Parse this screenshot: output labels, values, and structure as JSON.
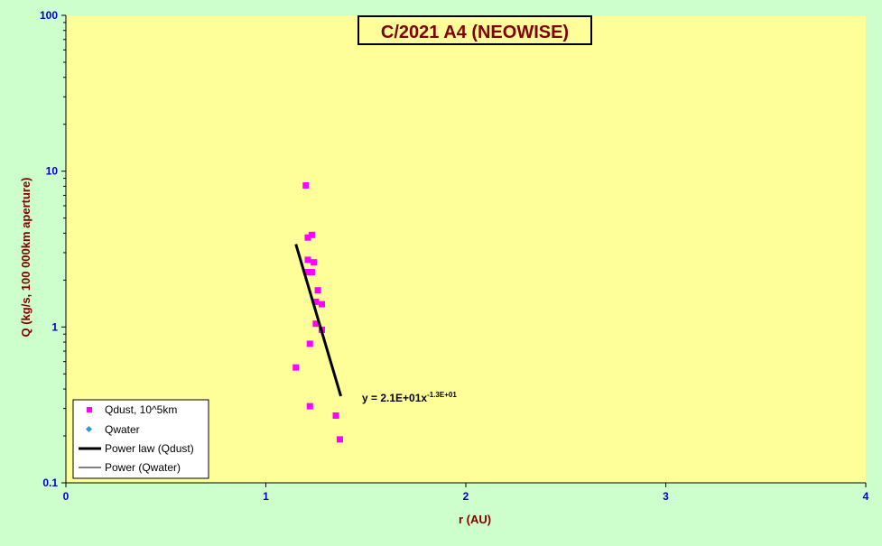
{
  "chart_data": {
    "type": "scatter",
    "title": "C/2021 A4 (NEOWISE)",
    "xlabel": "r (AU)",
    "ylabel": "Q (kg/s, 100 000km aperture)",
    "xlim": [
      0,
      4
    ],
    "ylim": [
      0.1,
      100
    ],
    "y_scale": "log",
    "grid": false,
    "x_ticks": [
      0,
      1,
      2,
      3,
      4
    ],
    "y_ticks": [
      0.1,
      1,
      10,
      100
    ],
    "y_tick_labels": [
      "0.1",
      "1",
      "10",
      "100"
    ],
    "series": [
      {
        "name": "Qdust, 10^5km",
        "marker": "square",
        "color": "#ff00ff",
        "points": [
          {
            "x": 1.2,
            "y": 8.1
          },
          {
            "x": 1.23,
            "y": 3.9
          },
          {
            "x": 1.21,
            "y": 3.75
          },
          {
            "x": 1.21,
            "y": 2.7
          },
          {
            "x": 1.24,
            "y": 2.6
          },
          {
            "x": 1.21,
            "y": 2.25
          },
          {
            "x": 1.23,
            "y": 2.25
          },
          {
            "x": 1.26,
            "y": 1.72
          },
          {
            "x": 1.25,
            "y": 1.45
          },
          {
            "x": 1.28,
            "y": 1.4
          },
          {
            "x": 1.25,
            "y": 1.05
          },
          {
            "x": 1.28,
            "y": 0.96
          },
          {
            "x": 1.22,
            "y": 0.78
          },
          {
            "x": 1.15,
            "y": 0.55
          },
          {
            "x": 1.22,
            "y": 0.31
          },
          {
            "x": 1.35,
            "y": 0.27
          },
          {
            "x": 1.37,
            "y": 0.19
          }
        ]
      },
      {
        "name": "Qwater",
        "marker": "diamond",
        "color": "#3399cc",
        "points": []
      },
      {
        "name": "Power law (Qdust)",
        "type": "trendline",
        "color": "#000000",
        "points": [
          {
            "x": 1.15,
            "y": 3.4
          },
          {
            "x": 1.375,
            "y": 0.36
          }
        ]
      },
      {
        "name": "Power (Qwater)",
        "type": "trendline",
        "color": "#000000",
        "points": []
      }
    ],
    "annotation": {
      "text": "y = 2.1E+01x",
      "superscript": "-1.3E+01"
    },
    "legend_position": "bottom-left",
    "colors": {
      "outer_background": "#ccffcc",
      "plot_background": "#ffff99",
      "axis_text": "#0000cc",
      "title_text": "#800000",
      "label_text": "#800000"
    }
  }
}
